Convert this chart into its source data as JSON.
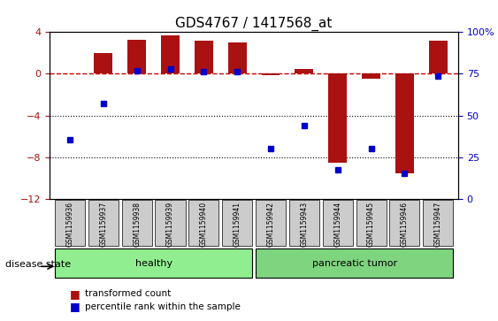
{
  "title": "GDS4767 / 1417568_at",
  "samples": [
    "GSM1159936",
    "GSM1159937",
    "GSM1159938",
    "GSM1159939",
    "GSM1159940",
    "GSM1159941",
    "GSM1159942",
    "GSM1159943",
    "GSM1159944",
    "GSM1159945",
    "GSM1159946",
    "GSM1159947"
  ],
  "red_bars": [
    0.0,
    2.0,
    3.3,
    3.7,
    3.2,
    3.0,
    -0.1,
    0.5,
    -8.5,
    -0.5,
    -9.5,
    3.2
  ],
  "blue_dots": [
    -6.3,
    -2.8,
    0.3,
    0.5,
    0.2,
    0.2,
    -7.2,
    -5.0,
    -9.2,
    -7.2,
    -9.5,
    -0.2
  ],
  "ylim_left": [
    -12,
    4
  ],
  "ylim_right": [
    0,
    100
  ],
  "groups": [
    {
      "label": "healthy",
      "start": 0,
      "end": 5,
      "color": "#90EE90"
    },
    {
      "label": "pancreatic tumor",
      "start": 6,
      "end": 11,
      "color": "#7FD47F"
    }
  ],
  "bar_color": "#AA1111",
  "dot_color": "#0000CC",
  "ref_line_color": "#CC0000",
  "grid_color": "#000000",
  "bg_color": "#FFFFFF",
  "tick_bg": "#CCCCCC",
  "legend_items": [
    "transformed count",
    "percentile rank within the sample"
  ],
  "disease_state_label": "disease state"
}
